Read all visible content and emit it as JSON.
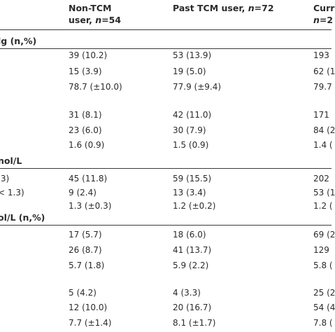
{
  "header": {
    "col1_line1": "Non-TCM",
    "col1_line2_prefix": "user, ",
    "col1_n_symbol": "n",
    "col1_n_value": "=54",
    "col2_prefix": "Past TCM user, ",
    "col2_n_symbol": "n",
    "col2_n_value": "=72",
    "col3_line1": "Curr",
    "col3_line2_symbol": "n",
    "col3_line2_value": "=2"
  },
  "sections": [
    {
      "label": "lg (n,%)"
    },
    {
      "label": "nol/L"
    },
    {
      "label": "ol/L (n,%)"
    }
  ],
  "row_labels": [
    ".3)",
    "< 1.3)"
  ],
  "rows": [
    {
      "c1": "39 (10.2)",
      "c2": "53 (13.9)",
      "c3": "193"
    },
    {
      "c1": "15 (3.9)",
      "c2": "19 (5.0)",
      "c3": "62 (1"
    },
    {
      "c1": "78.7 (±10.0)",
      "c2": "77.9 (±9.4)",
      "c3": "79.7"
    },
    {
      "c1": "31 (8.1)",
      "c2": "42 (11.0)",
      "c3": "171"
    },
    {
      "c1": "23 (6.0)",
      "c2": "30 (7.9)",
      "c3": "84 (2"
    },
    {
      "c1": "1.6 (0.9)",
      "c2": "1.5 (0.9)",
      "c3": "1.4 ("
    },
    {
      "c1": "45 (11.8)",
      "c2": "59 (15.5)",
      "c3": "202"
    },
    {
      "c1": "9 (2.4)",
      "c2": "13 (3.4)",
      "c3": "53 (1"
    },
    {
      "c1": "1.3 (±0.3)",
      "c2": "1.2 (±0.2)",
      "c3": "1.2 ("
    },
    {
      "c1": "17 (5.7)",
      "c2": "18 (6.0)",
      "c3": "69 (2"
    },
    {
      "c1": "26 (8.7)",
      "c2": "41 (13.7)",
      "c3": "129"
    },
    {
      "c1": "5.7 (1.8)",
      "c2": "5.9 (2.2)",
      "c3": "5.8 ("
    },
    {
      "c1": "5 (4.2)",
      "c2": "4 (3.3)",
      "c3": "25 (2"
    },
    {
      "c1": "12 (10.0)",
      "c2": "20 (16.7)",
      "c3": "54 (4"
    },
    {
      "c1": "7.7 (±1.4)",
      "c2": "8.1 (±1.7)",
      "c3": "7.8 ("
    }
  ]
}
